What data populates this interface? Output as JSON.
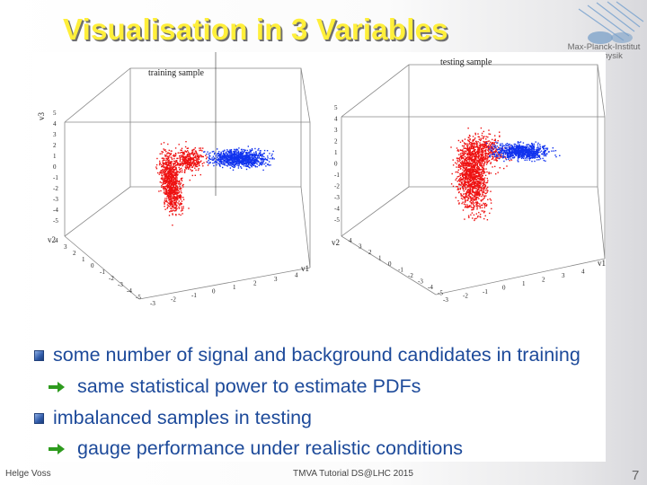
{
  "slide": {
    "title": "Visualisation in 3 Variables",
    "logo_text": "Max-Planck-Institut für Physik",
    "plots": [
      {
        "title": "training sample",
        "axis_label": "v3",
        "axis_label_2": "v2",
        "axis_label_3": "v1",
        "z_ticks": [
          "5",
          "4",
          "3",
          "2",
          "1",
          "0",
          "-1",
          "-2",
          "-3",
          "-4",
          "-5"
        ],
        "depth_ticks": [
          "4",
          "3",
          "2",
          "1",
          "0",
          "-1",
          "-2",
          "-3",
          "-4",
          "-5"
        ],
        "x_ticks": [
          "-3",
          "-2",
          "-1",
          "0",
          "1",
          "2",
          "3",
          "4"
        ]
      },
      {
        "title": "testing sample",
        "axis_label": "v3",
        "axis_label_2": "v2",
        "axis_label_3": "v1",
        "z_ticks": [
          "5",
          "4",
          "3",
          "2",
          "1",
          "0",
          "-1",
          "-2",
          "-3",
          "-4",
          "-5"
        ],
        "depth_ticks": [
          "4",
          "3",
          "2",
          "1",
          "0",
          "-1",
          "-2",
          "-3",
          "-4",
          "-5"
        ],
        "x_ticks": [
          "-3",
          "-2",
          "-1",
          "0",
          "1",
          "2",
          "3",
          "4"
        ]
      }
    ],
    "bullets": [
      {
        "type": "square",
        "text": "some number of signal and background candidates in training"
      },
      {
        "type": "arrow",
        "text": "same statistical power to estimate PDFs"
      },
      {
        "type": "square",
        "text": "imbalanced samples in testing"
      },
      {
        "type": "arrow",
        "text": "gauge performance under realistic conditions"
      }
    ],
    "footer": {
      "author": "Helge Voss",
      "event": "TMVA Tutorial DS@LHC 2015",
      "page": "7"
    },
    "colors": {
      "title": "#ffef3a",
      "bullet_text": "#1d4a9a",
      "arrow": "#2e9b1e",
      "signal": "#ee1111",
      "background": "#1133ee"
    }
  }
}
